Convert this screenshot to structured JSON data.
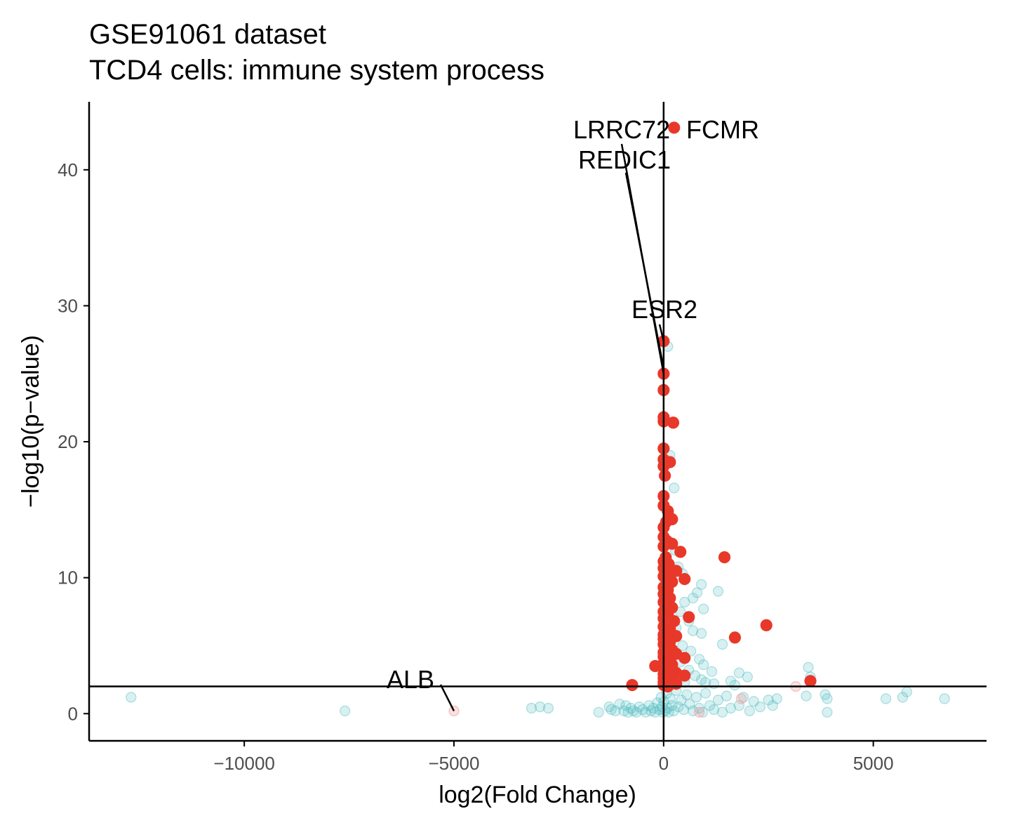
{
  "chart_data": {
    "type": "scatter",
    "title": "GSE91061 dataset",
    "subtitle": "TCD4 cells: immune system process",
    "xlabel": "log2(Fold Change)",
    "ylabel": "−log10(p−value)",
    "xlim": [
      -13700,
      7700
    ],
    "ylim": [
      -2,
      45
    ],
    "x_ticks": [
      -10000,
      -5000,
      0,
      5000
    ],
    "x_tick_labels": [
      "−10000",
      "−5000",
      "0",
      "5000"
    ],
    "y_ticks": [
      0,
      10,
      20,
      30,
      40
    ],
    "y_tick_labels": [
      "0",
      "10",
      "20",
      "30",
      "40"
    ],
    "reference_lines": {
      "hline_y": 2,
      "vline_x": 0
    },
    "grid": false,
    "colors": {
      "significant": "#e8382a",
      "nonsignificant": "#4fbcc0",
      "faded_significant": "#f2a6a6",
      "line": "#000000"
    },
    "series": [
      {
        "group": "significant",
        "points": [
          [
            250,
            43.1
          ],
          [
            0,
            27.4
          ],
          [
            0,
            25.0
          ],
          [
            0,
            23.8
          ],
          [
            0,
            21.8
          ],
          [
            0,
            21.5
          ],
          [
            230,
            21.4
          ],
          [
            0,
            19.5
          ],
          [
            0,
            18.7
          ],
          [
            150,
            18.5
          ],
          [
            0,
            18.2
          ],
          [
            30,
            17.5
          ],
          [
            0,
            16.0
          ],
          [
            0,
            15.3
          ],
          [
            100,
            14.9
          ],
          [
            200,
            14.3
          ],
          [
            60,
            14.1
          ],
          [
            0,
            13.7
          ],
          [
            0,
            13.0
          ],
          [
            80,
            12.7
          ],
          [
            200,
            12.5
          ],
          [
            0,
            12.3
          ],
          [
            400,
            11.9
          ],
          [
            50,
            11.5
          ],
          [
            1450,
            11.5
          ],
          [
            0,
            11.2
          ],
          [
            120,
            11.0
          ],
          [
            0,
            10.7
          ],
          [
            200,
            10.5
          ],
          [
            300,
            10.5
          ],
          [
            0,
            10.1
          ],
          [
            500,
            9.9
          ],
          [
            200,
            9.7
          ],
          [
            0,
            9.3
          ],
          [
            100,
            9.1
          ],
          [
            0,
            8.8
          ],
          [
            150,
            8.5
          ],
          [
            0,
            8.2
          ],
          [
            80,
            8.0
          ],
          [
            200,
            7.8
          ],
          [
            0,
            7.5
          ],
          [
            100,
            7.3
          ],
          [
            600,
            7.1
          ],
          [
            0,
            7.0
          ],
          [
            250,
            6.8
          ],
          [
            2450,
            6.5
          ],
          [
            0,
            6.4
          ],
          [
            150,
            6.2
          ],
          [
            100,
            6.0
          ],
          [
            0,
            5.8
          ],
          [
            300,
            5.7
          ],
          [
            1700,
            5.6
          ],
          [
            0,
            5.5
          ],
          [
            150,
            5.3
          ],
          [
            0,
            5.1
          ],
          [
            100,
            4.9
          ],
          [
            200,
            4.7
          ],
          [
            0,
            4.5
          ],
          [
            300,
            4.4
          ],
          [
            0,
            4.2
          ],
          [
            500,
            4.1
          ],
          [
            100,
            3.9
          ],
          [
            0,
            3.7
          ],
          [
            200,
            3.6
          ],
          [
            -200,
            3.5
          ],
          [
            0,
            3.3
          ],
          [
            100,
            3.2
          ],
          [
            300,
            3.0
          ],
          [
            0,
            2.9
          ],
          [
            150,
            2.8
          ],
          [
            500,
            2.8
          ],
          [
            0,
            2.6
          ],
          [
            50,
            2.5
          ],
          [
            200,
            2.4
          ],
          [
            3500,
            2.4
          ],
          [
            0,
            2.3
          ],
          [
            300,
            2.2
          ],
          [
            -750,
            2.1
          ],
          [
            0,
            2.1
          ],
          [
            100,
            2.0
          ]
        ]
      },
      {
        "group": "nonsignificant",
        "points": [
          [
            -12700,
            1.2
          ],
          [
            -7600,
            0.2
          ],
          [
            -3150,
            0.4
          ],
          [
            -2950,
            0.5
          ],
          [
            -2750,
            0.4
          ],
          [
            -1550,
            0.1
          ],
          [
            -1300,
            0.5
          ],
          [
            -1250,
            0.3
          ],
          [
            -1150,
            0.2
          ],
          [
            -1050,
            0.7
          ],
          [
            -950,
            0.2
          ],
          [
            -900,
            0.6
          ],
          [
            -850,
            0.1
          ],
          [
            -780,
            0.4
          ],
          [
            -720,
            0.2
          ],
          [
            -650,
            0.1
          ],
          [
            -580,
            0.5
          ],
          [
            -500,
            0.3
          ],
          [
            -430,
            0.1
          ],
          [
            -350,
            0.6
          ],
          [
            -300,
            0.2
          ],
          [
            -250,
            0.4
          ],
          [
            -200,
            0.1
          ],
          [
            -150,
            0.8
          ],
          [
            -100,
            0.3
          ],
          [
            -60,
            1.2
          ],
          [
            -40,
            0.5
          ],
          [
            -20,
            0.1
          ],
          [
            10,
            0.9
          ],
          [
            40,
            0.2
          ],
          [
            70,
            1.5
          ],
          [
            90,
            0.4
          ],
          [
            120,
            0.1
          ],
          [
            160,
            1.1
          ],
          [
            200,
            0.6
          ],
          [
            240,
            0.2
          ],
          [
            300,
            1.7
          ],
          [
            350,
            0.5
          ],
          [
            420,
            1.0
          ],
          [
            480,
            0.3
          ],
          [
            550,
            1.4
          ],
          [
            620,
            0.7
          ],
          [
            700,
            0.2
          ],
          [
            780,
            1.2
          ],
          [
            850,
            0.4
          ],
          [
            930,
            0.1
          ],
          [
            1000,
            1.5
          ],
          [
            1100,
            0.6
          ],
          [
            1200,
            0.3
          ],
          [
            1300,
            1.0
          ],
          [
            1400,
            0.1
          ],
          [
            1500,
            1.3
          ],
          [
            1600,
            0.4
          ],
          [
            1700,
            2.1
          ],
          [
            1800,
            0.6
          ],
          [
            1900,
            1.2
          ],
          [
            2050,
            0.2
          ],
          [
            2150,
            0.9
          ],
          [
            2300,
            0.5
          ],
          [
            2500,
            1.0
          ],
          [
            2600,
            0.6
          ],
          [
            2700,
            1.1
          ],
          [
            1600,
            2.4
          ],
          [
            1800,
            3.0
          ],
          [
            2000,
            2.7
          ],
          [
            1200,
            2.2
          ],
          [
            1000,
            2.3
          ],
          [
            3400,
            1.3
          ],
          [
            3450,
            3.4
          ],
          [
            3500,
            2.7
          ],
          [
            3850,
            1.4
          ],
          [
            3900,
            1.1
          ],
          [
            3900,
            0.1
          ],
          [
            5300,
            1.1
          ],
          [
            5700,
            1.2
          ],
          [
            5800,
            1.6
          ],
          [
            6700,
            1.1
          ],
          [
            100,
            27.0
          ],
          [
            150,
            19.0
          ],
          [
            250,
            16.6
          ],
          [
            130,
            14.6
          ],
          [
            280,
            12.0
          ],
          [
            350,
            10.8
          ],
          [
            450,
            10.3
          ],
          [
            900,
            9.5
          ],
          [
            800,
            8.9
          ],
          [
            1300,
            9.0
          ],
          [
            700,
            8.5
          ],
          [
            500,
            8.2
          ],
          [
            950,
            7.7
          ],
          [
            400,
            7.5
          ],
          [
            600,
            6.8
          ],
          [
            300,
            6.3
          ],
          [
            700,
            6.1
          ],
          [
            900,
            5.9
          ],
          [
            1400,
            5.1
          ],
          [
            450,
            5.0
          ],
          [
            650,
            4.6
          ],
          [
            250,
            4.3
          ],
          [
            850,
            4.0
          ],
          [
            400,
            3.8
          ],
          [
            950,
            3.6
          ],
          [
            600,
            3.2
          ],
          [
            1150,
            3.1
          ],
          [
            750,
            2.8
          ],
          [
            350,
            2.6
          ],
          [
            900,
            2.5
          ],
          [
            500,
            2.3
          ],
          [
            200,
            2.2
          ]
        ]
      },
      {
        "group": "faded_significant",
        "points": [
          [
            -5000,
            0.2
          ],
          [
            3150,
            2.0
          ],
          [
            1850,
            1.1
          ],
          [
            850,
            0.1
          ]
        ]
      }
    ],
    "annotations": [
      {
        "label": "FCMR",
        "x": 250,
        "y": 43.1
      },
      {
        "label": "LRRC72",
        "x": 0,
        "y": 25.0
      },
      {
        "label": "REDIC1",
        "x": 0,
        "y": 25.4
      },
      {
        "label": "ESR2",
        "x": 0,
        "y": 27.4
      },
      {
        "label": "ALB",
        "x": -5000,
        "y": 0.2
      }
    ]
  }
}
